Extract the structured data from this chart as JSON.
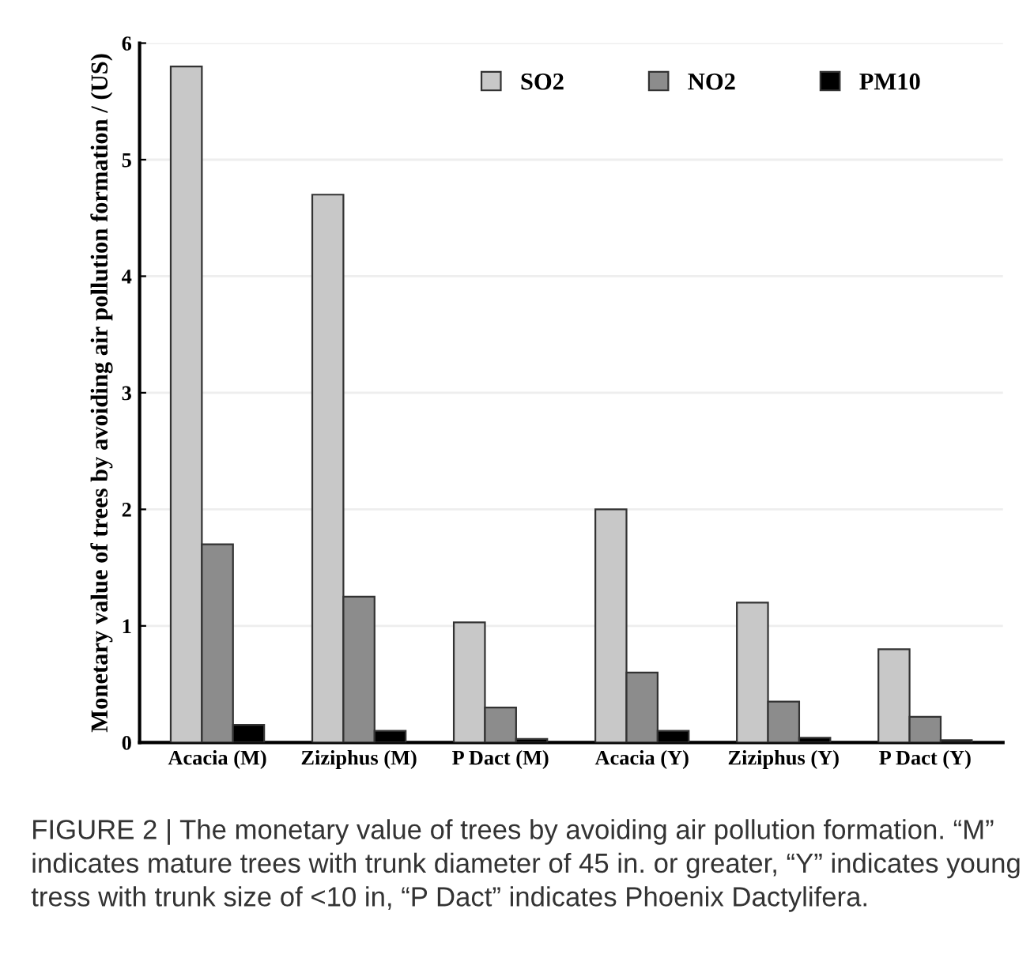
{
  "chart_data": {
    "type": "bar",
    "ylabel": "Monetary value of trees by avoiding air pollution formation / (US)",
    "categories": [
      "Acacia (M)",
      "Ziziphus (M)",
      "P Dact (M)",
      "Acacia (Y)",
      "Ziziphus (Y)",
      "P Dact (Y)"
    ],
    "series": [
      {
        "name": "SO2",
        "color": "#c8c8c8",
        "values": [
          5.8,
          4.7,
          1.03,
          2.0,
          1.2,
          0.8
        ]
      },
      {
        "name": "NO2",
        "color": "#8c8c8c",
        "values": [
          1.7,
          1.25,
          0.3,
          0.6,
          0.35,
          0.22
        ]
      },
      {
        "name": "PM10",
        "color": "#000000",
        "values": [
          0.15,
          0.1,
          0.03,
          0.1,
          0.04,
          0.02
        ]
      }
    ],
    "ylim": [
      0,
      6
    ],
    "yticks": [
      0,
      1,
      2,
      3,
      4,
      5,
      6
    ],
    "grid": "y",
    "legend": "top right",
    "annotations": [
      "FIGURE 2 | The monetary value of trees by avoiding air pollution formation. “M” indicates mature trees with trunk diameter of 45 in. or greater, “Y” indicates young tress with trunk size of <10 in, “P Dact” indicates Phoenix Dactylifera."
    ]
  }
}
